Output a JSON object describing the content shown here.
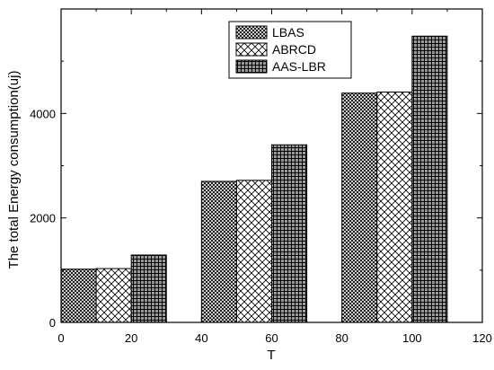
{
  "chart_data": {
    "type": "bar",
    "xlabel": "T",
    "ylabel": "The total Energy consumption(uj)",
    "xlim": [
      0,
      120
    ],
    "ylim": [
      0,
      6000
    ],
    "x_ticks": [
      0,
      20,
      40,
      60,
      80,
      100,
      120
    ],
    "y_ticks": [
      0,
      2000,
      4000
    ],
    "grid": false,
    "legend_position": "top-right",
    "bar_width": 10,
    "groups": [
      15,
      55,
      95
    ],
    "series": [
      {
        "name": "LBAS",
        "pattern": "dense-crosshatch",
        "values": [
          1020,
          2700,
          4390
        ],
        "offset": -10
      },
      {
        "name": "ABRCD",
        "pattern": "diagonal-crosshatch",
        "values": [
          1030,
          2720,
          4410
        ],
        "offset": 0
      },
      {
        "name": "AAS-LBR",
        "pattern": "grid-lines",
        "values": [
          1290,
          3400,
          5480
        ],
        "offset": 10
      }
    ]
  }
}
